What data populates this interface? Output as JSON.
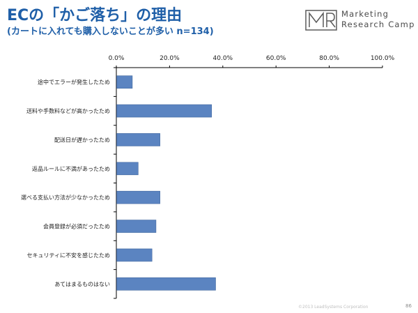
{
  "header": {
    "title": "ECの「かご落ち」の理由",
    "subtitle": "(カートに入れても購入しないことが多い n=134)"
  },
  "logo": {
    "mark_name": "mr-monogram-logo",
    "line1": "Marketing",
    "line2": "Research Camp"
  },
  "footer": {
    "copyright": "©2013 LeadSystems Corporation",
    "page": "86"
  },
  "colors": {
    "title": "#1f5fa8",
    "bar": "#5b84c1",
    "bar_stroke": "#41689f",
    "axis": "#000000"
  },
  "chart_data": {
    "type": "bar",
    "orientation": "horizontal",
    "categories": [
      "途中でエラーが発生したため",
      "送料や手数料などが高かったため",
      "配送日が遅かったため",
      "返品ルールに不満があったため",
      "選べる支払い方法が少なかったため",
      "会員登録が必須だったため",
      "セキュリティに不安を感じたため",
      "あてはまるものはない"
    ],
    "values": [
      6.0,
      35.8,
      16.4,
      8.2,
      16.4,
      14.9,
      13.4,
      37.3
    ],
    "ticks": [
      "0.0%",
      "20.0%",
      "40.0%",
      "60.0%",
      "80.0%",
      "100.0%"
    ],
    "xlim": [
      0,
      100
    ],
    "axis_position": "top",
    "grid": false,
    "legend": "none"
  }
}
